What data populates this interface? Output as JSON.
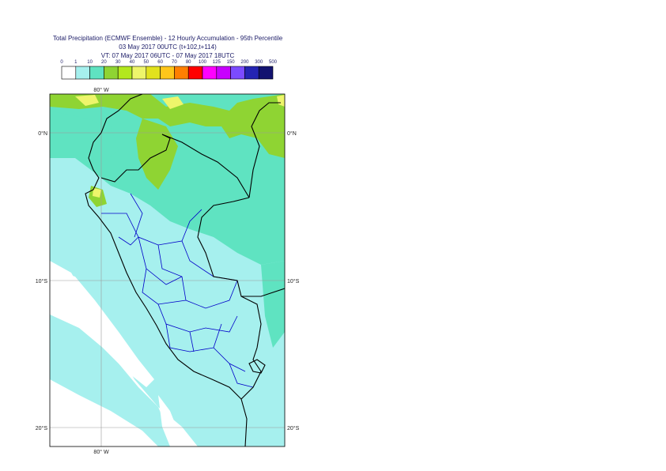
{
  "header": {
    "title": "Total Precipitation (ECMWF Ensemble) - 12 Hourly Accumulation - 95th Percentile",
    "base_time": "03 May 2017 00UTC (t+102,t+114)",
    "valid_time": "VT: 07 May 2017 06UTC - 07 May 2017 18UTC"
  },
  "legend": {
    "ticks": [
      "0",
      "1",
      "10",
      "20",
      "30",
      "40",
      "50",
      "60",
      "70",
      "80",
      "100",
      "125",
      "150",
      "200",
      "300",
      "500"
    ],
    "colors": [
      "#ffffff",
      "#a6f0ee",
      "#5fe3c1",
      "#8fd433",
      "#b3e81e",
      "#eef56b",
      "#e2e21e",
      "#ffc61a",
      "#ff7f00",
      "#ff0000",
      "#ff00ff",
      "#c800ff",
      "#7c4bff",
      "#2424b3",
      "#121270"
    ]
  },
  "map": {
    "lon_labels": [
      "80° W",
      "80° W"
    ],
    "lat_labels": [
      {
        "left": "0°N",
        "right": "0°N"
      },
      {
        "left": "10°S",
        "right": "10°S"
      },
      {
        "left": "20°S",
        "right": "20°S"
      }
    ],
    "colors": {
      "ocean_dry": "#ffffff",
      "light": "#a6f0ee",
      "medium": "#5fe3c1",
      "green": "#8fd433",
      "yellow": "#eef56b",
      "border_country": "#000000",
      "border_admin": "#0000c8",
      "grid": "#9a9a9a"
    }
  }
}
